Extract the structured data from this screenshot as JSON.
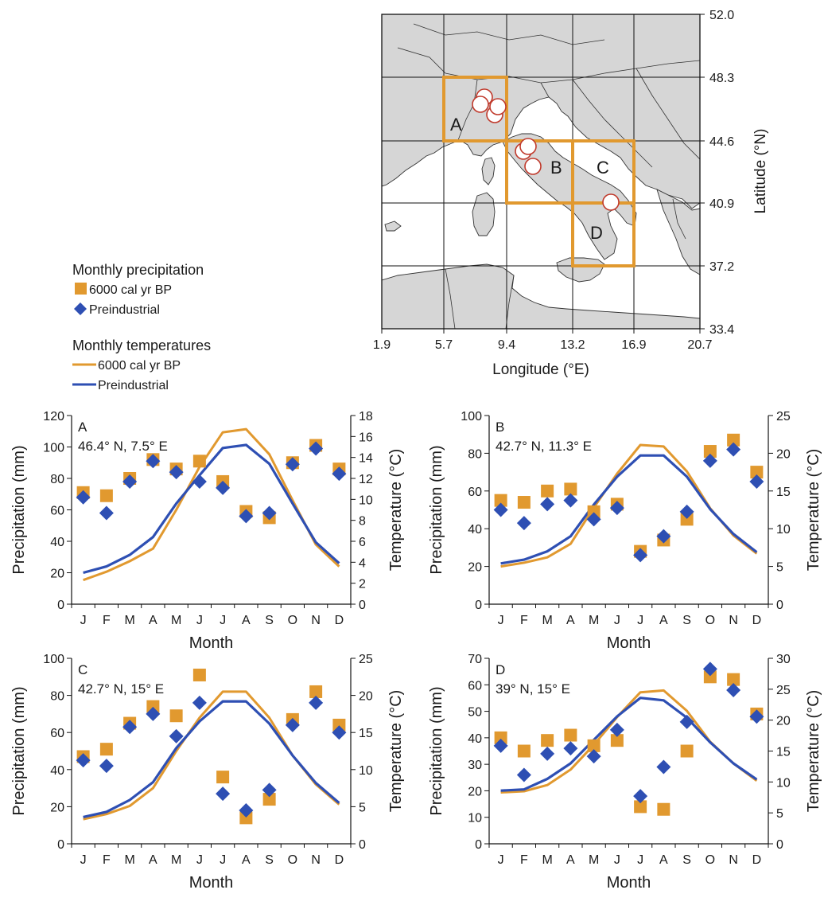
{
  "colors": {
    "orange": "#E1992F",
    "blue": "#2E4FB3",
    "land": "#d6d6d6",
    "sea": "#ffffff",
    "site": "#C0392B"
  },
  "map": {
    "x_ticks": [
      "1.9",
      "5.7",
      "9.4",
      "13.2",
      "16.9",
      "20.7"
    ],
    "y_ticks": [
      "52.0",
      "48.3",
      "44.6",
      "40.9",
      "37.2",
      "33.4"
    ],
    "xlabel": "Longitude (°E)",
    "ylabel": "Latitude (°N)",
    "boxes": [
      "A",
      "B",
      "C",
      "D"
    ],
    "site_count": 7
  },
  "legend": {
    "precip_title": "Monthly precipitation",
    "precip_items": [
      "6000 cal yr BP",
      "Preindustrial"
    ],
    "temp_title": "Monthly temperatures",
    "temp_items": [
      "6000 cal yr BP",
      "Preindustrial"
    ]
  },
  "chart_data": [
    {
      "type": "line",
      "panel": "A",
      "location": "46.4° N, 7.5° E",
      "categories": [
        "J",
        "F",
        "M",
        "A",
        "M",
        "J",
        "J",
        "A",
        "S",
        "O",
        "N",
        "D"
      ],
      "xlabel": "Month",
      "ylabel": "Precipitation (mm)",
      "y2label": "Temperature (°C)",
      "ylim": [
        0,
        120
      ],
      "yticks": [
        0,
        20,
        40,
        60,
        80,
        100,
        120
      ],
      "y2lim": [
        0,
        18
      ],
      "y2ticks": [
        0,
        2,
        4,
        6,
        8,
        10,
        12,
        14,
        16,
        18
      ],
      "precip_6k": [
        71,
        69,
        80,
        92,
        86,
        91,
        78,
        59,
        55,
        90,
        101,
        86
      ],
      "precip_pi": [
        68,
        58,
        78,
        91,
        84,
        78,
        74,
        56,
        58,
        89,
        99,
        83
      ],
      "temp_6k": [
        2.3,
        3.1,
        4.1,
        5.3,
        9.0,
        13.1,
        16.4,
        16.7,
        14.3,
        9.9,
        5.7,
        3.6
      ],
      "temp_pi": [
        3.0,
        3.6,
        4.7,
        6.4,
        9.6,
        12.3,
        14.9,
        15.2,
        13.4,
        9.6,
        5.9,
        3.9
      ]
    },
    {
      "type": "line",
      "panel": "B",
      "location": "42.7° N, 11.3° E",
      "categories": [
        "J",
        "F",
        "M",
        "A",
        "M",
        "J",
        "J",
        "A",
        "S",
        "O",
        "N",
        "D"
      ],
      "xlabel": "Month",
      "ylabel": "Precipitation (mm)",
      "y2label": "Temperature (°C)",
      "ylim": [
        0,
        100
      ],
      "yticks": [
        0,
        20,
        40,
        60,
        80,
        100
      ],
      "y2lim": [
        0,
        25
      ],
      "y2ticks": [
        0,
        5,
        10,
        15,
        20,
        25
      ],
      "precip_6k": [
        55,
        54,
        60,
        61,
        49,
        53,
        28,
        34,
        45,
        81,
        87,
        70
      ],
      "precip_pi": [
        50,
        43,
        53,
        55,
        45,
        51,
        26,
        36,
        49,
        76,
        82,
        65
      ],
      "temp_6k": [
        5.0,
        5.5,
        6.2,
        8.0,
        12.8,
        17.3,
        21.1,
        20.9,
        17.6,
        12.7,
        9.1,
        6.7
      ],
      "temp_pi": [
        5.4,
        5.9,
        7.0,
        9.0,
        13.2,
        16.9,
        19.7,
        19.7,
        16.9,
        12.6,
        9.3,
        6.9
      ]
    },
    {
      "type": "line",
      "panel": "C",
      "location": "42.7° N, 15° E",
      "categories": [
        "J",
        "F",
        "M",
        "A",
        "M",
        "J",
        "J",
        "A",
        "S",
        "O",
        "N",
        "D"
      ],
      "xlabel": "Month",
      "ylabel": "Precipitation (mm)",
      "y2label": "Temperature (°C)",
      "ylim": [
        0,
        100
      ],
      "yticks": [
        0,
        20,
        40,
        60,
        80,
        100
      ],
      "y2lim": [
        0,
        25
      ],
      "y2ticks": [
        0,
        5,
        10,
        15,
        20,
        25
      ],
      "precip_6k": [
        47,
        51,
        65,
        74,
        69,
        91,
        36,
        14,
        24,
        67,
        82,
        64
      ],
      "precip_pi": [
        45,
        42,
        63,
        70,
        58,
        76,
        27,
        18,
        29,
        64,
        76,
        60
      ],
      "temp_6k": [
        3.3,
        4.0,
        5.1,
        7.5,
        12.5,
        17.0,
        20.5,
        20.5,
        17.0,
        11.9,
        8.0,
        5.3
      ],
      "temp_pi": [
        3.6,
        4.3,
        5.9,
        8.3,
        12.9,
        16.5,
        19.2,
        19.2,
        16.2,
        11.9,
        8.2,
        5.5
      ]
    },
    {
      "type": "line",
      "panel": "D",
      "location": "39° N, 15° E",
      "categories": [
        "J",
        "F",
        "M",
        "A",
        "M",
        "J",
        "J",
        "A",
        "S",
        "O",
        "N",
        "D"
      ],
      "xlabel": "Month",
      "ylabel": "Precipitation (mm)",
      "y2label": "Temperature (°C)",
      "ylim": [
        0,
        70
      ],
      "yticks": [
        0,
        10,
        20,
        30,
        40,
        50,
        60,
        70
      ],
      "y2lim": [
        0,
        30
      ],
      "y2ticks": [
        0,
        5,
        10,
        15,
        20,
        25,
        30
      ],
      "precip_6k": [
        40,
        35,
        39,
        41,
        37,
        39,
        14,
        13,
        35,
        63,
        62,
        49
      ],
      "precip_pi": [
        37,
        26,
        34,
        36,
        33,
        43,
        18,
        29,
        46,
        66,
        58,
        48
      ],
      "temp_6k": [
        8.3,
        8.5,
        9.5,
        12.0,
        16.0,
        20.5,
        24.5,
        24.8,
        21.5,
        16.5,
        13.0,
        10.2
      ],
      "temp_pi": [
        8.6,
        8.8,
        10.5,
        13.0,
        16.8,
        20.6,
        23.6,
        23.2,
        20.4,
        16.4,
        13.0,
        10.4
      ]
    }
  ]
}
